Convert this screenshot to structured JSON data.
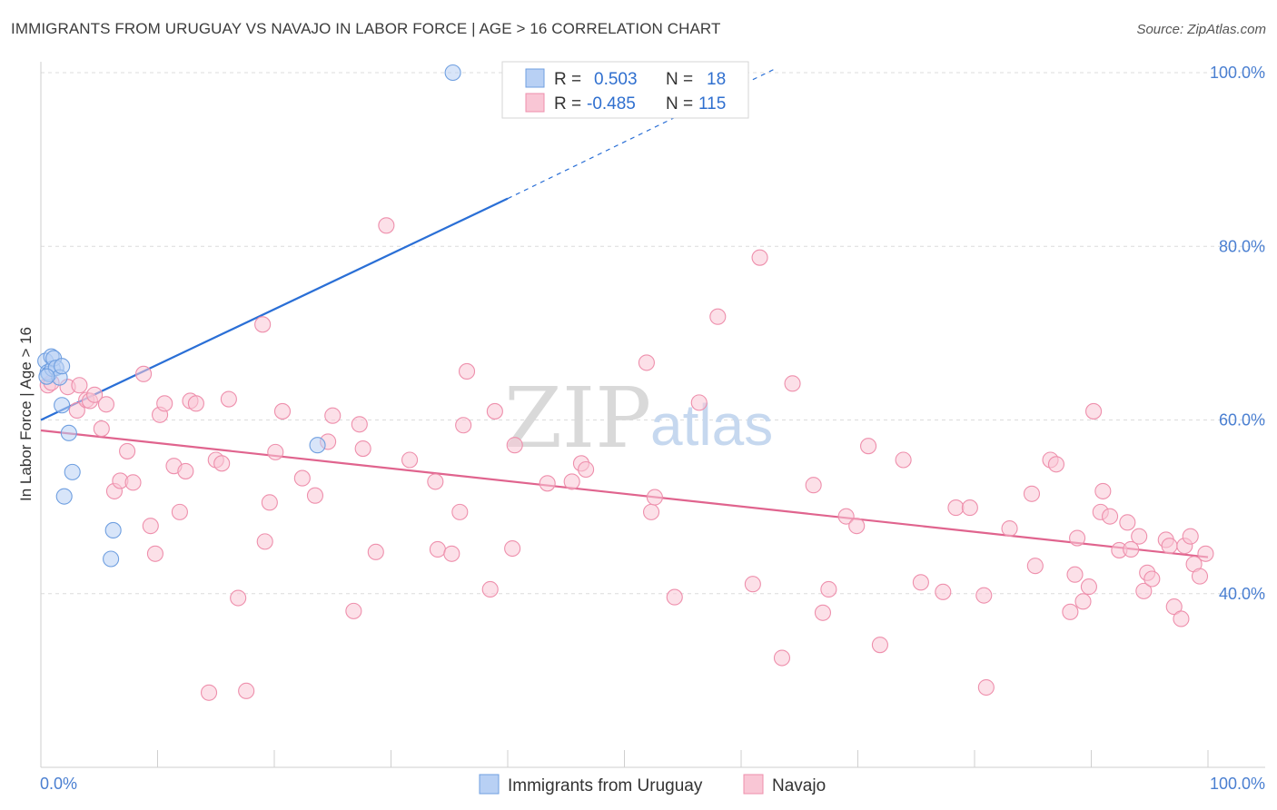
{
  "title": "IMMIGRANTS FROM URUGUAY VS NAVAJO IN LABOR FORCE | AGE > 16 CORRELATION CHART",
  "source": "Source: ZipAtlas.com",
  "watermark": {
    "zip": "ZIP",
    "atlas": "atlas"
  },
  "legend_stats": [
    {
      "r_label": "R =",
      "r_value": "0.503",
      "n_label": "N =",
      "n_value": "18",
      "color": "#a9c6f0"
    },
    {
      "r_label": "R =",
      "r_value": "-0.485",
      "n_label": "N =",
      "n_value": "115",
      "color": "#f6b8cb"
    }
  ],
  "chart_data": {
    "type": "scatter",
    "title": "IMMIGRANTS FROM URUGUAY VS NAVAJO IN LABOR FORCE | AGE > 16 CORRELATION CHART",
    "xlabel": "",
    "ylabel": "In Labor Force | Age > 16",
    "xlim": [
      0,
      100
    ],
    "ylim": [
      20,
      102
    ],
    "x_tick_labels": [
      "0.0%",
      "100.0%"
    ],
    "y_ticks": [
      40,
      60,
      80,
      100
    ],
    "y_tick_labels": [
      "40.0%",
      "60.0%",
      "80.0%",
      "100.0%"
    ],
    "grid": true,
    "legend_position": "bottom",
    "series": [
      {
        "name": "Immigrants from Uruguay",
        "color": "#6f9fe0",
        "fill": "#b8d0f4",
        "trend": {
          "x0": 0,
          "y0": 60.0,
          "x1": 40,
          "y1": 85.5,
          "dashed_to_x": 63,
          "dashed_to_y": 100.5,
          "color": "#2a6fd6"
        },
        "points": [
          [
            0.4,
            66.8
          ],
          [
            0.6,
            65.5
          ],
          [
            0.7,
            65.3
          ],
          [
            0.9,
            67.3
          ],
          [
            1.0,
            65.9
          ],
          [
            1.1,
            67.1
          ],
          [
            1.3,
            66.0
          ],
          [
            1.6,
            64.9
          ],
          [
            1.8,
            66.2
          ],
          [
            1.8,
            61.7
          ],
          [
            2.0,
            51.2
          ],
          [
            2.4,
            58.5
          ],
          [
            2.7,
            54.0
          ],
          [
            6.2,
            47.3
          ],
          [
            6.0,
            44.0
          ],
          [
            23.7,
            57.1
          ],
          [
            35.3,
            100.0
          ],
          [
            0.5,
            65.0
          ]
        ]
      },
      {
        "name": "Navajo",
        "color": "#ee8fac",
        "fill": "#f9c6d5",
        "trend": {
          "x0": 0,
          "y0": 58.8,
          "x1": 100,
          "y1": 44.2,
          "color": "#e0648e"
        },
        "points": [
          [
            0.6,
            64.0
          ],
          [
            2.3,
            63.8
          ],
          [
            3.1,
            61.1
          ],
          [
            3.3,
            64.0
          ],
          [
            3.9,
            62.3
          ],
          [
            4.2,
            62.2
          ],
          [
            4.6,
            62.9
          ],
          [
            5.2,
            59.0
          ],
          [
            5.6,
            61.8
          ],
          [
            6.3,
            51.8
          ],
          [
            6.8,
            53.0
          ],
          [
            7.4,
            56.4
          ],
          [
            7.9,
            52.8
          ],
          [
            8.8,
            65.3
          ],
          [
            9.4,
            47.8
          ],
          [
            9.8,
            44.6
          ],
          [
            10.2,
            60.6
          ],
          [
            10.6,
            61.9
          ],
          [
            11.4,
            54.7
          ],
          [
            11.9,
            49.4
          ],
          [
            12.4,
            54.1
          ],
          [
            12.8,
            62.2
          ],
          [
            13.3,
            61.9
          ],
          [
            14.4,
            28.6
          ],
          [
            15.0,
            55.4
          ],
          [
            15.5,
            55.0
          ],
          [
            16.1,
            62.4
          ],
          [
            16.9,
            39.5
          ],
          [
            17.6,
            28.8
          ],
          [
            19.0,
            71.0
          ],
          [
            19.2,
            46.0
          ],
          [
            19.6,
            50.5
          ],
          [
            20.1,
            56.3
          ],
          [
            20.7,
            61.0
          ],
          [
            22.4,
            53.3
          ],
          [
            23.5,
            51.3
          ],
          [
            24.6,
            57.5
          ],
          [
            25.0,
            60.5
          ],
          [
            26.8,
            38.0
          ],
          [
            27.3,
            59.5
          ],
          [
            27.6,
            56.7
          ],
          [
            28.7,
            44.8
          ],
          [
            29.6,
            82.4
          ],
          [
            31.6,
            55.4
          ],
          [
            33.8,
            52.9
          ],
          [
            34.0,
            45.1
          ],
          [
            35.2,
            44.6
          ],
          [
            35.9,
            49.4
          ],
          [
            36.2,
            59.4
          ],
          [
            36.5,
            65.6
          ],
          [
            38.5,
            40.5
          ],
          [
            38.9,
            61.0
          ],
          [
            40.4,
            45.2
          ],
          [
            40.6,
            57.1
          ],
          [
            43.4,
            52.7
          ],
          [
            45.5,
            52.9
          ],
          [
            46.3,
            55.0
          ],
          [
            46.7,
            54.3
          ],
          [
            51.9,
            66.6
          ],
          [
            52.3,
            49.4
          ],
          [
            52.6,
            51.1
          ],
          [
            54.3,
            39.6
          ],
          [
            56.4,
            62.0
          ],
          [
            58.0,
            71.9
          ],
          [
            61.0,
            41.1
          ],
          [
            61.6,
            78.7
          ],
          [
            63.5,
            32.6
          ],
          [
            64.4,
            64.2
          ],
          [
            66.2,
            52.5
          ],
          [
            67.0,
            37.8
          ],
          [
            67.5,
            40.5
          ],
          [
            69.0,
            48.9
          ],
          [
            69.9,
            47.8
          ],
          [
            70.9,
            57.0
          ],
          [
            71.9,
            34.1
          ],
          [
            73.9,
            55.4
          ],
          [
            75.4,
            41.3
          ],
          [
            77.3,
            40.2
          ],
          [
            78.4,
            49.9
          ],
          [
            79.6,
            49.9
          ],
          [
            80.8,
            39.8
          ],
          [
            81.0,
            29.2
          ],
          [
            83.0,
            47.5
          ],
          [
            84.9,
            51.5
          ],
          [
            85.2,
            43.2
          ],
          [
            86.5,
            55.4
          ],
          [
            87.0,
            54.9
          ],
          [
            88.2,
            37.9
          ],
          [
            88.6,
            42.2
          ],
          [
            88.8,
            46.4
          ],
          [
            89.3,
            39.1
          ],
          [
            89.8,
            40.8
          ],
          [
            90.2,
            61.0
          ],
          [
            90.8,
            49.4
          ],
          [
            91.0,
            51.8
          ],
          [
            91.6,
            48.9
          ],
          [
            92.4,
            45.0
          ],
          [
            93.1,
            48.2
          ],
          [
            93.4,
            45.1
          ],
          [
            94.1,
            46.6
          ],
          [
            94.5,
            40.3
          ],
          [
            94.8,
            42.4
          ],
          [
            95.2,
            41.7
          ],
          [
            96.4,
            46.2
          ],
          [
            96.7,
            45.5
          ],
          [
            97.1,
            38.5
          ],
          [
            97.7,
            37.1
          ],
          [
            98.0,
            45.5
          ],
          [
            98.5,
            46.6
          ],
          [
            98.8,
            43.4
          ],
          [
            99.3,
            42.0
          ],
          [
            99.8,
            44.6
          ],
          [
            0.9,
            64.3
          ]
        ]
      }
    ]
  }
}
